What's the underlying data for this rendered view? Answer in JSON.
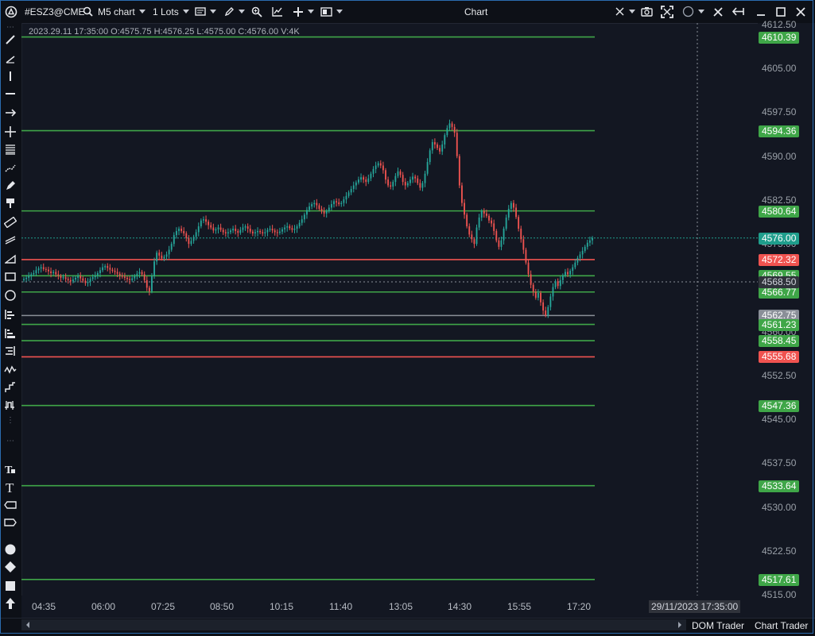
{
  "toolbar": {
    "symbol": "#ESZ3@CME",
    "timeframe": "M5 chart",
    "lots": "1 Lots",
    "window_title": "Chart"
  },
  "ohlc_label": "2023.29.11 17:35:00 O:4575.75 H:4576.25 L:4575.00 C:4576.00 V:4K",
  "y_axis": {
    "min": 4515.0,
    "max": 4612.5,
    "tick_labels": [
      "4612.50",
      "4605.00",
      "4597.50",
      "4590.00",
      "4582.50",
      "4575.00",
      "4567.50",
      "4560.00",
      "4552.50",
      "4545.00",
      "4537.50",
      "4530.00",
      "4522.50",
      "4515.00"
    ]
  },
  "x_axis": {
    "tick_labels": [
      "04:35",
      "06:00",
      "07:25",
      "08:50",
      "10:15",
      "11:40",
      "13:05",
      "14:30",
      "15:55",
      "17:20"
    ],
    "crosshair_time": "29/11/2023 17:35:00",
    "crosshair_price": "4568.50"
  },
  "levels": [
    {
      "label": "4610.39",
      "value": 4610.39,
      "color": "#3fa648"
    },
    {
      "label": "4594.36",
      "value": 4594.36,
      "color": "#3fa648"
    },
    {
      "label": "4580.64",
      "value": 4580.64,
      "color": "#3fa648"
    },
    {
      "label": "4572.32",
      "value": 4572.32,
      "color": "#f05350"
    },
    {
      "label": "4569.55",
      "value": 4569.55,
      "color": "#3fa648"
    },
    {
      "label": "4566.77",
      "value": 4566.77,
      "color": "#3fa648"
    },
    {
      "label": "4562.75",
      "value": 4562.75,
      "color": "#8a8f98"
    },
    {
      "label": "4561.23",
      "value": 4561.23,
      "color": "#3fa648"
    },
    {
      "label": "4558.45",
      "value": 4558.45,
      "color": "#3fa648"
    },
    {
      "label": "4555.68",
      "value": 4555.68,
      "color": "#f05350"
    },
    {
      "label": "4547.36",
      "value": 4547.36,
      "color": "#3fa648"
    },
    {
      "label": "4533.64",
      "value": 4533.64,
      "color": "#3fa648"
    },
    {
      "label": "4517.61",
      "value": 4517.61,
      "color": "#3fa648"
    }
  ],
  "last_price": {
    "label": "4576.00",
    "value": 4576.0,
    "color": "#1f9e8c"
  },
  "bottom_tabs": [
    "DOM Trader",
    "Chart Trader"
  ],
  "colors": {
    "up": "#26a69a",
    "down": "#ef5350",
    "bg": "#131722"
  },
  "chart_data": {
    "type": "candlestick",
    "ylim": [
      4515.0,
      4612.5
    ],
    "closes": [
      4569.0,
      4569.2,
      4569.5,
      4569.8,
      4570.0,
      4570.5,
      4570.8,
      4571.0,
      4570.7,
      4570.6,
      4570.3,
      4570.0,
      4570.2,
      4569.8,
      4569.5,
      4569.2,
      4569.3,
      4569.0,
      4568.8,
      4568.6,
      4568.9,
      4569.2,
      4569.5,
      4569.1,
      4568.7,
      4568.3,
      4568.5,
      4569.0,
      4569.3,
      4569.6,
      4570.0,
      4570.5,
      4571.0,
      4571.2,
      4570.9,
      4570.6,
      4570.4,
      4570.2,
      4569.9,
      4569.6,
      4569.4,
      4569.2,
      4569.0,
      4568.8,
      4569.1,
      4569.5,
      4569.9,
      4570.2,
      4569.8,
      4568.8,
      4567.5,
      4566.9,
      4569.5,
      4572.0,
      4573.5,
      4573.0,
      4572.5,
      4572.8,
      4573.2,
      4574.0,
      4575.0,
      4576.5,
      4577.2,
      4577.6,
      4577.2,
      4576.8,
      4576.0,
      4575.0,
      4575.5,
      4576.2,
      4577.0,
      4578.0,
      4579.0,
      4579.2,
      4578.8,
      4578.2,
      4577.8,
      4577.3,
      4577.5,
      4577.8,
      4577.4,
      4577.0,
      4576.8,
      4577.0,
      4577.3,
      4577.6,
      4577.2,
      4576.9,
      4577.4,
      4577.8,
      4578.0,
      4577.6,
      4577.1,
      4576.8,
      4577.0,
      4577.2,
      4577.0,
      4576.8,
      4577.0,
      4577.4,
      4577.6,
      4577.3,
      4577.0,
      4576.9,
      4577.1,
      4577.5,
      4577.8,
      4578.0,
      4577.7,
      4577.4,
      4577.6,
      4578.0,
      4578.6,
      4579.2,
      4580.0,
      4580.8,
      4581.4,
      4581.8,
      4582.0,
      4581.6,
      4581.0,
      4580.6,
      4580.2,
      4580.6,
      4581.2,
      4581.8,
      4582.3,
      4582.1,
      4581.8,
      4582.0,
      4582.6,
      4583.2,
      4583.8,
      4584.4,
      4585.0,
      4585.5,
      4586.0,
      4586.4,
      4586.0,
      4585.6,
      4586.2,
      4587.0,
      4587.8,
      4588.4,
      4588.8,
      4588.4,
      4587.6,
      4586.0,
      4585.0,
      4584.8,
      4585.6,
      4586.6,
      4587.4,
      4586.8,
      4585.6,
      4585.0,
      4585.4,
      4586.0,
      4586.5,
      4586.2,
      4585.4,
      4584.6,
      4585.4,
      4587.0,
      4589.0,
      4591.0,
      4592.4,
      4592.0,
      4591.4,
      4590.8,
      4592.0,
      4593.6,
      4594.8,
      4595.6,
      4595.0,
      4594.0,
      4590.0,
      4585.0,
      4582.0,
      4580.0,
      4578.0,
      4576.6,
      4575.8,
      4575.0,
      4577.8,
      4579.5,
      4580.6,
      4580.2,
      4579.8,
      4579.0,
      4578.5,
      4577.2,
      4575.6,
      4574.5,
      4575.6,
      4577.6,
      4579.5,
      4581.0,
      4582.0,
      4581.2,
      4579.6,
      4577.6,
      4575.8,
      4574.0,
      4571.8,
      4569.8,
      4568.0,
      4566.8,
      4565.8,
      4566.6,
      4565.0,
      4563.6,
      4562.8,
      4564.2,
      4566.0,
      4567.6,
      4568.6,
      4567.8,
      4568.8,
      4569.6,
      4570.2,
      4569.8,
      4570.4,
      4571.0,
      4571.8,
      4572.6,
      4573.2,
      4573.8,
      4574.5,
      4575.2,
      4575.6,
      4576.0
    ]
  }
}
